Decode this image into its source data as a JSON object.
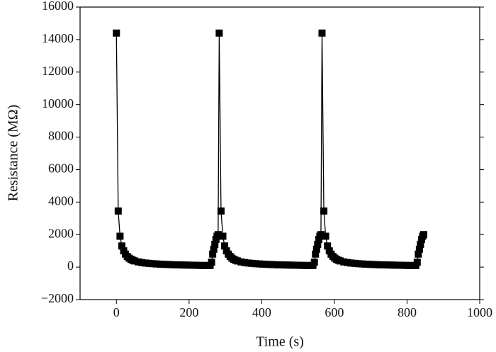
{
  "chart_data": {
    "type": "line",
    "xlabel": "Time (s)",
    "ylabel": "Resistance (MΩ)",
    "xlim": [
      -100,
      1000
    ],
    "xticks": [
      0,
      200,
      400,
      600,
      800,
      1000
    ],
    "ylim": [
      -2000,
      16000
    ],
    "yticks": [
      {
        "value": -2000,
        "label": "−2000"
      },
      0,
      2000,
      4000,
      6000,
      8000,
      10000,
      12000,
      14000,
      16000
    ],
    "markers": "square",
    "series": [
      {
        "color": "#000000",
        "x": [
          0,
          5,
          10,
          15,
          20,
          25,
          30,
          35,
          40,
          45,
          50,
          60,
          70,
          80,
          90,
          100,
          110,
          120,
          130,
          140,
          150,
          160,
          170,
          180,
          190,
          200,
          210,
          220,
          230,
          240,
          250,
          258,
          262,
          265,
          268,
          271,
          274,
          277,
          280,
          283,
          288,
          293,
          298,
          303,
          308,
          313,
          318,
          323,
          328,
          333,
          343,
          353,
          363,
          373,
          383,
          393,
          403,
          413,
          423,
          433,
          443,
          453,
          463,
          473,
          483,
          493,
          503,
          513,
          523,
          533,
          541,
          545,
          548,
          551,
          554,
          557,
          560,
          563,
          566,
          571,
          576,
          581,
          586,
          591,
          596,
          601,
          606,
          611,
          616,
          626,
          636,
          646,
          656,
          666,
          676,
          686,
          696,
          706,
          716,
          726,
          736,
          746,
          756,
          766,
          776,
          786,
          796,
          806,
          816,
          824,
          828,
          831,
          834,
          837,
          840,
          843,
          846
        ],
        "values": [
          14400,
          3450,
          1900,
          1300,
          1000,
          800,
          650,
          550,
          480,
          420,
          380,
          320,
          280,
          250,
          230,
          210,
          195,
          180,
          170,
          160,
          150,
          140,
          135,
          130,
          125,
          120,
          115,
          110,
          105,
          100,
          100,
          100,
          300,
          800,
          1100,
          1400,
          1700,
          1900,
          2000,
          14400,
          3450,
          1900,
          1300,
          1000,
          800,
          650,
          550,
          480,
          420,
          380,
          320,
          280,
          250,
          230,
          210,
          195,
          180,
          170,
          160,
          150,
          140,
          135,
          130,
          125,
          120,
          115,
          110,
          105,
          100,
          100,
          100,
          300,
          800,
          1100,
          1400,
          1700,
          1900,
          2000,
          14400,
          3450,
          1900,
          1300,
          1000,
          800,
          650,
          550,
          480,
          420,
          380,
          320,
          280,
          250,
          230,
          210,
          195,
          180,
          170,
          160,
          150,
          140,
          135,
          130,
          125,
          120,
          115,
          110,
          105,
          100,
          100,
          100,
          300,
          800,
          1100,
          1400,
          1700,
          1900,
          2000
        ]
      }
    ]
  }
}
